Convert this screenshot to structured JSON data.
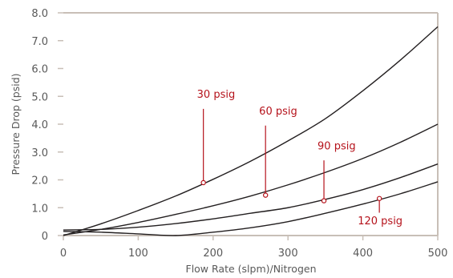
{
  "chart_data": {
    "type": "line",
    "title": "",
    "xlabel": "Flow Rate (slpm)/Nitrogen",
    "ylabel": "Pressure Drop (psid)",
    "xlim": [
      0,
      500
    ],
    "ylim": [
      0,
      8
    ],
    "x_ticks": [
      {
        "value": 0,
        "label": "0"
      },
      {
        "value": 100,
        "label": "100"
      },
      {
        "value": 200,
        "label": "200"
      },
      {
        "value": 300,
        "label": "300"
      },
      {
        "value": 400,
        "label": "400"
      },
      {
        "value": 500,
        "label": "500"
      }
    ],
    "y_ticks": [
      {
        "value": 0,
        "label": "0"
      },
      {
        "value": 1,
        "label": "1.0"
      },
      {
        "value": 2,
        "label": "2.0"
      },
      {
        "value": 3,
        "label": "3.0"
      },
      {
        "value": 4,
        "label": "4.0"
      },
      {
        "value": 5,
        "label": "5.0"
      },
      {
        "value": 6,
        "label": "6.0"
      },
      {
        "value": 7,
        "label": "7.0"
      },
      {
        "value": 8,
        "label": "8.0"
      }
    ],
    "grid": false,
    "colors": {
      "series": "#231f20",
      "callout": "#b5121b",
      "axis": "#c8bfb7",
      "text": "#595959"
    },
    "series": [
      {
        "name": "30 psig",
        "x": [
          0,
          50,
          100,
          150,
          200,
          250,
          300,
          350,
          400,
          450,
          500
        ],
        "y": [
          0.0,
          0.42,
          0.9,
          1.42,
          2.02,
          2.67,
          3.4,
          4.2,
          5.2,
          6.3,
          7.5
        ]
      },
      {
        "name": "60 psig",
        "x": [
          0,
          50,
          100,
          150,
          200,
          250,
          300,
          350,
          400,
          450,
          500
        ],
        "y": [
          0.02,
          0.22,
          0.47,
          0.76,
          1.07,
          1.42,
          1.82,
          2.27,
          2.77,
          3.35,
          4.0
        ]
      },
      {
        "name": "90 psig",
        "x": [
          0,
          50,
          100,
          150,
          200,
          250,
          300,
          350,
          400,
          450,
          500
        ],
        "y": [
          0.2,
          0.22,
          0.3,
          0.43,
          0.6,
          0.8,
          1.0,
          1.3,
          1.65,
          2.08,
          2.57
        ]
      },
      {
        "name": "120 psig",
        "x": [
          0,
          50,
          100,
          150,
          200,
          250,
          300,
          350,
          400,
          450,
          500
        ],
        "y": [
          0.15,
          0.12,
          0.06,
          0.0,
          0.12,
          0.28,
          0.5,
          0.8,
          1.13,
          1.5,
          1.93
        ]
      }
    ],
    "callouts": [
      {
        "label": "30 psig",
        "x": 187,
        "y": 1.9,
        "label_x": 187,
        "label_y": 4.95,
        "line_top": 4.55,
        "anchor": "start"
      },
      {
        "label": "60 psig",
        "x": 270,
        "y": 1.45,
        "label_x": 270,
        "label_y": 4.35,
        "line_top": 3.95,
        "anchor": "start"
      },
      {
        "label": "90 psig",
        "x": 348,
        "y": 1.25,
        "label_x": 348,
        "label_y": 3.1,
        "line_top": 2.7,
        "anchor": "start"
      },
      {
        "label": "120 psig",
        "x": 422,
        "y": 1.33,
        "label_x": 422,
        "label_y": 0.4,
        "line_top": 0.82,
        "anchor": "middle"
      }
    ]
  }
}
